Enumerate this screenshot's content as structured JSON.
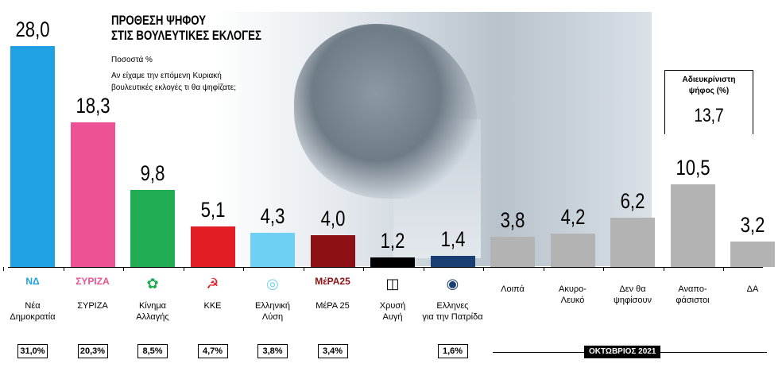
{
  "header": {
    "title_line1": "ΠΡΟΘΕΣΗ ΨΗΦΟΥ",
    "title_line2": "ΣΤΙΣ ΒΟΥΛΕΥΤΙΚΕΣ ΕΚΛΟΓΕΣ",
    "subtitle": "Ποσοστά %",
    "question_line1": "Αν είχαμε την επόμενη Κυριακή",
    "question_line2": "βουλευτικές εκλογές τι θα ψηφίζατε;"
  },
  "undecided": {
    "label_line1": "Αδιευκρίνιστη",
    "label_line2": "ψήφος (%)",
    "value": "13,7"
  },
  "date_label": "ΟΚΤΩΒΡΙΟΣ 2021",
  "colors": {
    "nd": "#1fa1e3",
    "syriza": "#ec5294",
    "kinal": "#1fac52",
    "kke": "#e31d24",
    "elliniki": "#6fd0f5",
    "mera25": "#8d1014",
    "xa": "#000000",
    "ellines": "#1a3f73",
    "other": "#b3b3b3"
  },
  "logos": {
    "nd": "ΝΔ",
    "syriza": "ΣΥΡΙΖΑ",
    "kinal": "✿",
    "kke": "☭",
    "elliniki": "◎",
    "mera25": "ΜέΡΑ25",
    "xa": "◫",
    "ellines": "◉"
  },
  "chart_data": {
    "type": "bar",
    "ylim": [
      0,
      30
    ],
    "categories": [
      "Νέα Δημοκρατία",
      "ΣΥΡΙΖΑ",
      "Κίνημα Αλλαγής",
      "ΚΚΕ",
      "Ελληνική Λύση",
      "ΜέΡΑ 25",
      "Χρυσή Αυγή",
      "Ελληνες για την Πατρίδα",
      "Λοιπά",
      "Ακυρο-Λευκό",
      "Δεν θα ψηφίσουν",
      "Αναποφάσιστοι",
      "ΔΑ"
    ],
    "label_lines": [
      [
        "Νέα",
        "Δημοκρατία"
      ],
      [
        "ΣΥΡΙΖΑ"
      ],
      [
        "Κίνημα",
        "Αλλαγής"
      ],
      [
        "ΚΚΕ"
      ],
      [
        "Ελληνική",
        "Λύση"
      ],
      [
        "ΜέΡΑ 25"
      ],
      [
        "Χρυσή",
        "Αυγή"
      ],
      [
        "Ελληνες",
        "για την Πατρίδα"
      ],
      [
        "Λοιπά"
      ],
      [
        "Ακυρο-",
        "Λευκό"
      ],
      [
        "Δεν θα",
        "ψηφίσουν"
      ],
      [
        "Αναπο-",
        "φάσιστοι"
      ],
      [
        "ΔΑ"
      ]
    ],
    "values": [
      28.0,
      18.3,
      9.8,
      5.1,
      4.3,
      4.0,
      1.2,
      1.4,
      3.8,
      4.2,
      6.2,
      10.5,
      3.2
    ],
    "value_labels": [
      "28,0",
      "18,3",
      "9,8",
      "5,1",
      "4,3",
      "4,0",
      "1,2",
      "1,4",
      "3,8",
      "4,2",
      "6,2",
      "10,5",
      "3,2"
    ],
    "bar_colors": [
      "#1fa1e3",
      "#ec5294",
      "#1fac52",
      "#e31d24",
      "#6fd0f5",
      "#8d1014",
      "#000000",
      "#1a3f73",
      "#b3b3b3",
      "#b3b3b3",
      "#b3b3b3",
      "#b3b3b3",
      "#b3b3b3"
    ],
    "previous": [
      "31,0%",
      "20,3%",
      "8,5%",
      "4,7%",
      "3,8%",
      "3,4%",
      null,
      "1,6%",
      null,
      null,
      null,
      null,
      null
    ],
    "logo_keys": [
      "nd",
      "syriza",
      "kinal",
      "kke",
      "elliniki",
      "mera25",
      "xa",
      "ellines",
      null,
      null,
      null,
      null,
      null
    ]
  }
}
